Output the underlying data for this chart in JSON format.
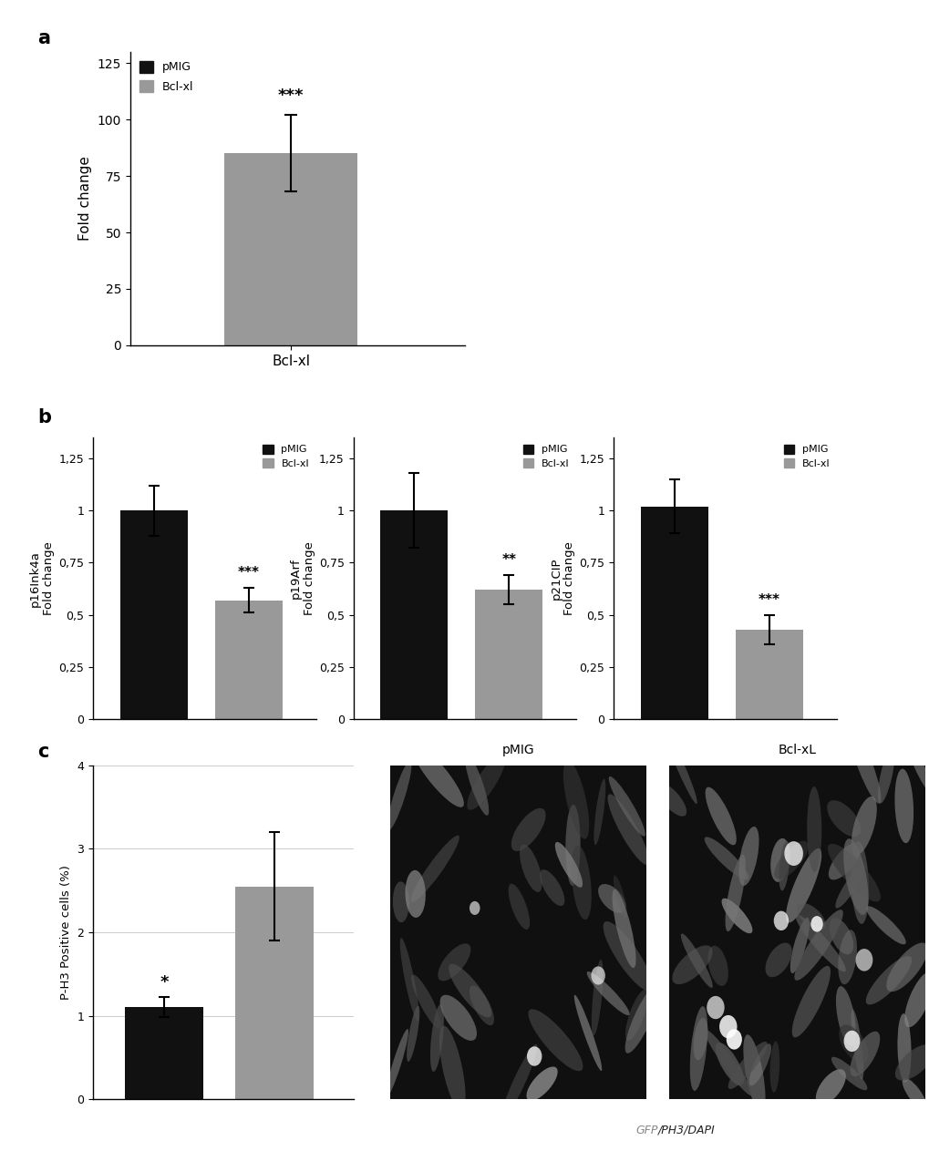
{
  "panel_a": {
    "bars": [
      {
        "label": "Bcl-xl",
        "value": 85,
        "error": 17,
        "color": "#999999"
      }
    ],
    "xlabel": "Bcl-xl",
    "ylabel": "Fold change",
    "ylim": [
      0,
      130
    ],
    "yticks": [
      0,
      25,
      50,
      75,
      100,
      125
    ],
    "significance": "***",
    "legend": [
      {
        "label": "pMIG",
        "color": "#111111"
      },
      {
        "label": "Bcl-xl",
        "color": "#999999"
      }
    ]
  },
  "panel_b": [
    {
      "title": "p16Ink4a",
      "bars": [
        {
          "label": "pMIG",
          "value": 1.0,
          "error": 0.12,
          "color": "#111111"
        },
        {
          "label": "Bcl-xl",
          "value": 0.57,
          "error": 0.06,
          "color": "#999999"
        }
      ],
      "ylim": [
        0,
        1.35
      ],
      "yticks": [
        0,
        0.25,
        0.5,
        0.75,
        1.0,
        1.25
      ],
      "ytick_labels": [
        "0",
        "0,25",
        "0,5",
        "0,75",
        "1",
        "1,25"
      ],
      "significance": "***",
      "legend": [
        {
          "label": "pMIG",
          "color": "#111111"
        },
        {
          "label": "Bcl-xl",
          "color": "#999999"
        }
      ]
    },
    {
      "title": "p19Arf",
      "bars": [
        {
          "label": "pMIG",
          "value": 1.0,
          "error": 0.18,
          "color": "#111111"
        },
        {
          "label": "Bcl-xl",
          "value": 0.62,
          "error": 0.07,
          "color": "#999999"
        }
      ],
      "ylim": [
        0,
        1.35
      ],
      "yticks": [
        0,
        0.25,
        0.5,
        0.75,
        1.0,
        1.25
      ],
      "ytick_labels": [
        "0",
        "0,25",
        "0,5",
        "0,75",
        "1",
        "1,25"
      ],
      "significance": "**",
      "legend": [
        {
          "label": "pMIG",
          "color": "#111111"
        },
        {
          "label": "Bcl-xl",
          "color": "#999999"
        }
      ]
    },
    {
      "title": "p21CIP",
      "bars": [
        {
          "label": "pMIG",
          "value": 1.02,
          "error": 0.13,
          "color": "#111111"
        },
        {
          "label": "Bcl-xl",
          "value": 0.43,
          "error": 0.07,
          "color": "#999999"
        }
      ],
      "ylim": [
        0,
        1.35
      ],
      "yticks": [
        0,
        0.25,
        0.5,
        0.75,
        1.0,
        1.25
      ],
      "ytick_labels": [
        "0",
        "0,25",
        "0,5",
        "0,75",
        "1",
        "1,25"
      ],
      "significance": "***",
      "legend": [
        {
          "label": "pMIG",
          "color": "#111111"
        },
        {
          "label": "Bcl-xl",
          "color": "#999999"
        }
      ]
    }
  ],
  "panel_c": {
    "bars": [
      {
        "label": "pMIG",
        "value": 1.1,
        "error": 0.12,
        "color": "#111111"
      },
      {
        "label": "Bcl-xl",
        "value": 2.55,
        "error": 0.65,
        "color": "#999999"
      }
    ],
    "ylabel": "P-H3 Positive cells (%)",
    "ylim": [
      0,
      4
    ],
    "yticks": [
      0,
      1,
      2,
      3,
      4
    ],
    "significance_pmig": "*",
    "img_label_pmig": "pMIG",
    "img_label_bclxl": "Bcl-xL",
    "img_caption": "GFP/PH3/DAPI"
  },
  "panel_labels": [
    "a",
    "b",
    "c"
  ],
  "background_color": "#ffffff"
}
